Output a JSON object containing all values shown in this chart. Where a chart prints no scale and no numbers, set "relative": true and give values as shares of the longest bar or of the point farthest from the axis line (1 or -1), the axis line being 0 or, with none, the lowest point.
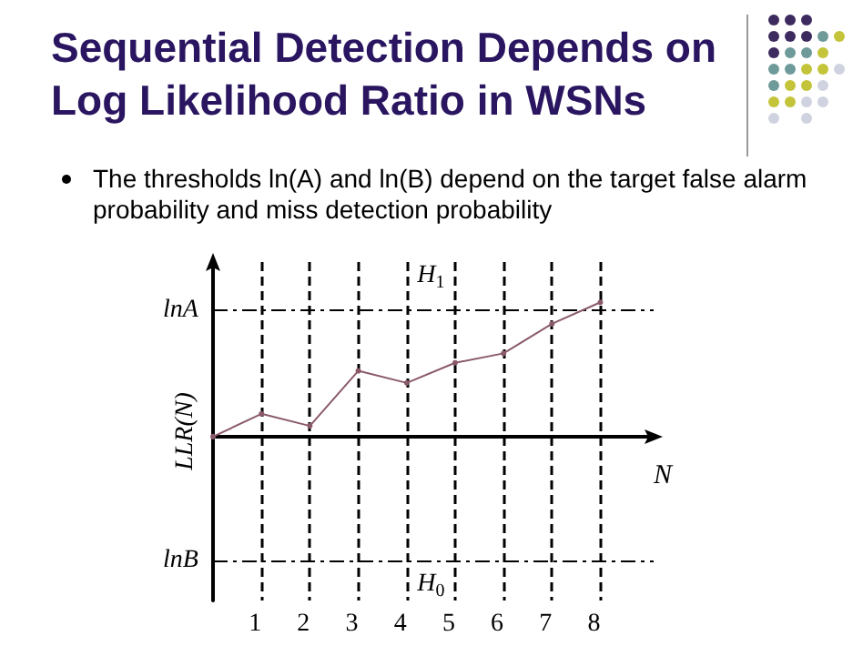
{
  "chart_data": {
    "type": "line",
    "title": "Sequential Detection Depends on Log Likelihood Ratio in WSNs",
    "subtitle": "The thresholds ln(A) and ln(B) depend on the target false alarm probability and miss detection probability",
    "xlabel": "N",
    "ylabel": "LLR(N)",
    "relative": true,
    "x": [
      0,
      1,
      2,
      3,
      4,
      5,
      6,
      7,
      8
    ],
    "series": [
      {
        "color": "#8a5a68",
        "values": [
          0,
          0.17,
          0.08,
          0.49,
          0.4,
          0.55,
          0.62,
          0.84,
          1
        ]
      }
    ],
    "xlim": [
      0,
      9.1
    ],
    "xticks": [
      1,
      2,
      3,
      4,
      5,
      6,
      7,
      8
    ],
    "tick_labels": "x",
    "grid": "x",
    "marker": "circle",
    "line_style": "solid",
    "ref_lines": [
      {
        "axis": "y",
        "value": 0.94,
        "label": "lnA",
        "line_style": "dashed",
        "color": "#000000"
      },
      {
        "axis": "y",
        "value": -0.92,
        "label": "lnB",
        "line_style": "dashed",
        "color": "#000000"
      }
    ],
    "annotations": [
      "H$_{1}$",
      "H$_{0}$"
    ]
  }
}
